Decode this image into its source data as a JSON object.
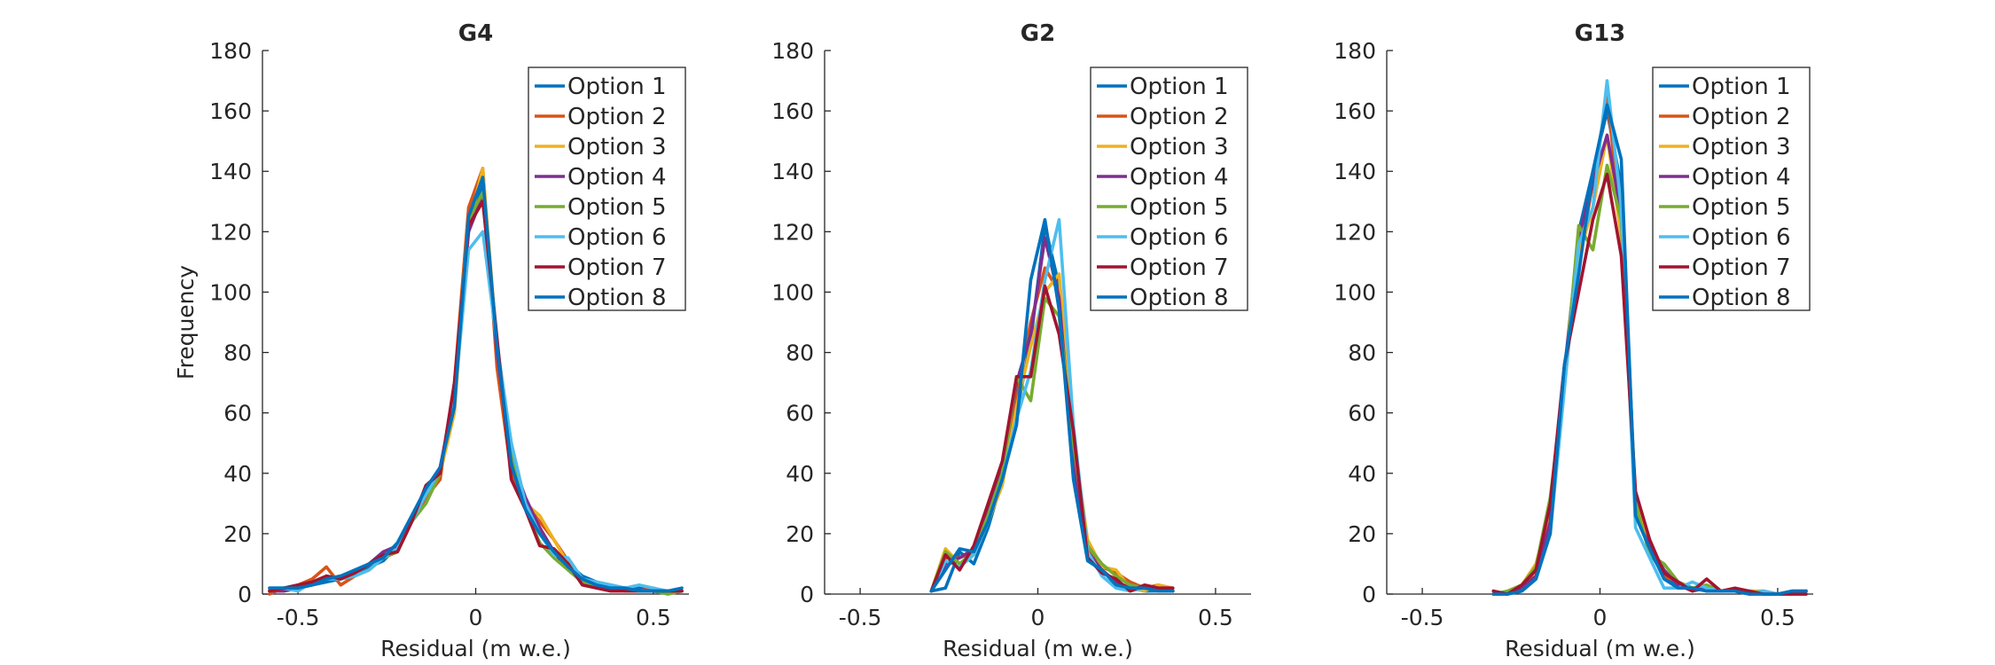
{
  "chart_data": [
    {
      "type": "line",
      "title": "G4",
      "xlabel": "Residual (m w.e.)",
      "ylabel": "Frequency",
      "xlim": [
        -0.6,
        0.6
      ],
      "ylim": [
        0,
        180
      ],
      "xticks": [
        -0.5,
        0,
        0.5
      ],
      "xtick_labels": [
        "-0.5",
        "0",
        "0.5"
      ],
      "yticks": [
        0,
        20,
        40,
        60,
        80,
        100,
        120,
        140,
        160,
        180
      ],
      "grid": false,
      "legend": "top-right",
      "x": [
        -0.58,
        -0.54,
        -0.5,
        -0.46,
        -0.42,
        -0.38,
        -0.34,
        -0.3,
        -0.26,
        -0.22,
        -0.18,
        -0.14,
        -0.1,
        -0.06,
        -0.02,
        0.02,
        0.06,
        0.1,
        0.14,
        0.18,
        0.22,
        0.26,
        0.3,
        0.34,
        0.38,
        0.42,
        0.46,
        0.5,
        0.54,
        0.58
      ],
      "series": [
        {
          "name": "Option 1",
          "values": [
            1,
            1,
            2,
            3,
            4,
            5,
            6,
            9,
            11,
            16,
            24,
            33,
            40,
            68,
            123,
            135,
            80,
            50,
            30,
            22,
            14,
            10,
            6,
            4,
            3,
            2,
            2,
            1,
            1,
            1
          ]
        },
        {
          "name": "Option 2",
          "values": [
            0,
            2,
            3,
            5,
            9,
            3,
            6,
            8,
            12,
            14,
            24,
            32,
            38,
            70,
            128,
            141,
            75,
            40,
            30,
            24,
            18,
            11,
            5,
            3,
            2,
            1,
            1,
            2,
            0,
            1
          ]
        },
        {
          "name": "Option 3",
          "values": [
            1,
            1,
            2,
            4,
            5,
            6,
            7,
            10,
            12,
            16,
            25,
            33,
            40,
            60,
            122,
            141,
            82,
            44,
            30,
            26,
            18,
            10,
            4,
            2,
            2,
            2,
            1,
            1,
            1,
            1
          ]
        },
        {
          "name": "Option 4",
          "values": [
            1,
            1,
            2,
            3,
            6,
            5,
            7,
            10,
            14,
            16,
            24,
            34,
            42,
            66,
            120,
            132,
            80,
            45,
            32,
            22,
            14,
            8,
            4,
            3,
            2,
            2,
            1,
            1,
            1,
            1
          ]
        },
        {
          "name": "Option 5",
          "values": [
            1,
            2,
            3,
            4,
            5,
            6,
            7,
            10,
            12,
            14,
            24,
            30,
            40,
            68,
            124,
            133,
            83,
            48,
            28,
            17,
            12,
            8,
            4,
            3,
            2,
            1,
            1,
            1,
            0,
            1
          ]
        },
        {
          "name": "Option 6",
          "values": [
            2,
            2,
            1,
            4,
            5,
            5,
            6,
            8,
            12,
            15,
            24,
            33,
            41,
            64,
            114,
            120,
            83,
            50,
            30,
            20,
            13,
            12,
            5,
            4,
            3,
            2,
            3,
            2,
            1,
            1
          ]
        },
        {
          "name": "Option 7",
          "values": [
            1,
            2,
            3,
            4,
            6,
            5,
            7,
            10,
            13,
            14,
            24,
            36,
            40,
            70,
            122,
            130,
            85,
            38,
            28,
            16,
            15,
            10,
            3,
            2,
            1,
            1,
            1,
            1,
            1,
            1
          ]
        },
        {
          "name": "Option 8",
          "values": [
            2,
            2,
            2,
            3,
            5,
            6,
            8,
            10,
            12,
            17,
            26,
            35,
            42,
            62,
            125,
            138,
            82,
            43,
            28,
            20,
            14,
            9,
            5,
            3,
            2,
            2,
            1,
            1,
            1,
            2
          ]
        }
      ]
    },
    {
      "type": "line",
      "title": "G2",
      "xlabel": "Residual (m w.e.)",
      "ylabel": "",
      "xlim": [
        -0.6,
        0.6
      ],
      "ylim": [
        0,
        180
      ],
      "xticks": [
        -0.5,
        0,
        0.5
      ],
      "xtick_labels": [
        "-0.5",
        "0",
        "0.5"
      ],
      "yticks": [
        0,
        20,
        40,
        60,
        80,
        100,
        120,
        140,
        160,
        180
      ],
      "grid": false,
      "legend": "top-right",
      "x": [
        -0.3,
        -0.26,
        -0.22,
        -0.18,
        -0.14,
        -0.1,
        -0.06,
        -0.02,
        0.02,
        0.06,
        0.1,
        0.14,
        0.18,
        0.22,
        0.26,
        0.3,
        0.34,
        0.38
      ],
      "series": [
        {
          "name": "Option 1",
          "values": [
            1,
            2,
            14,
            10,
            22,
            38,
            60,
            84,
            122,
            102,
            40,
            12,
            8,
            4,
            2,
            1,
            1,
            1
          ]
        },
        {
          "name": "Option 2",
          "values": [
            1,
            12,
            12,
            14,
            26,
            40,
            66,
            90,
            108,
            100,
            46,
            15,
            9,
            7,
            4,
            2,
            3,
            1
          ]
        },
        {
          "name": "Option 3",
          "values": [
            1,
            15,
            10,
            13,
            24,
            36,
            62,
            82,
            100,
            106,
            52,
            18,
            9,
            8,
            2,
            1,
            3,
            2
          ]
        },
        {
          "name": "Option 4",
          "values": [
            1,
            10,
            12,
            15,
            28,
            42,
            70,
            86,
            118,
            98,
            42,
            14,
            8,
            4,
            2,
            2,
            2,
            1
          ]
        },
        {
          "name": "Option 5",
          "values": [
            1,
            14,
            10,
            14,
            26,
            40,
            72,
            64,
            98,
            92,
            50,
            16,
            10,
            6,
            3,
            2,
            2,
            1
          ]
        },
        {
          "name": "Option 6",
          "values": [
            1,
            11,
            9,
            13,
            24,
            38,
            58,
            74,
            104,
            124,
            56,
            14,
            6,
            2,
            1,
            2,
            1,
            1
          ]
        },
        {
          "name": "Option 7",
          "values": [
            1,
            13,
            8,
            16,
            30,
            44,
            72,
            72,
            102,
            86,
            54,
            12,
            7,
            5,
            1,
            3,
            2,
            2
          ]
        },
        {
          "name": "Option 8",
          "values": [
            1,
            8,
            15,
            14,
            24,
            38,
            56,
            104,
            124,
            94,
            38,
            11,
            8,
            3,
            2,
            2,
            1,
            1
          ]
        }
      ]
    },
    {
      "type": "line",
      "title": "G13",
      "xlabel": "Residual (m w.e.)",
      "ylabel": "",
      "xlim": [
        -0.6,
        0.6
      ],
      "ylim": [
        0,
        180
      ],
      "xticks": [
        -0.5,
        0,
        0.5
      ],
      "xtick_labels": [
        "-0.5",
        "0",
        "0.5"
      ],
      "yticks": [
        0,
        20,
        40,
        60,
        80,
        100,
        120,
        140,
        160,
        180
      ],
      "grid": false,
      "legend": "top-right",
      "x": [
        -0.3,
        -0.26,
        -0.22,
        -0.18,
        -0.14,
        -0.1,
        -0.06,
        -0.02,
        0.02,
        0.06,
        0.1,
        0.14,
        0.18,
        0.22,
        0.26,
        0.3,
        0.34,
        0.38,
        0.42,
        0.46,
        0.5,
        0.54,
        0.58
      ],
      "series": [
        {
          "name": "Option 1",
          "values": [
            0,
            0,
            1,
            5,
            22,
            70,
            120,
            140,
            160,
            135,
            30,
            14,
            6,
            3,
            2,
            1,
            1,
            1,
            0,
            0,
            0,
            0,
            1
          ]
        },
        {
          "name": "Option 2",
          "values": [
            1,
            0,
            2,
            8,
            30,
            72,
            110,
            136,
            165,
            122,
            30,
            16,
            6,
            4,
            2,
            2,
            1,
            1,
            1,
            0,
            0,
            1,
            0
          ]
        },
        {
          "name": "Option 3",
          "values": [
            0,
            1,
            3,
            10,
            28,
            70,
            112,
            128,
            152,
            118,
            32,
            14,
            8,
            3,
            2,
            3,
            1,
            1,
            1,
            1,
            0,
            0,
            0
          ]
        },
        {
          "name": "Option 4",
          "values": [
            0,
            0,
            2,
            6,
            24,
            74,
            118,
            136,
            152,
            126,
            26,
            16,
            8,
            3,
            1,
            2,
            1,
            1,
            0,
            1,
            0,
            0,
            0
          ]
        },
        {
          "name": "Option 5",
          "values": [
            0,
            1,
            3,
            9,
            32,
            70,
            122,
            114,
            142,
            124,
            30,
            13,
            10,
            4,
            2,
            3,
            1,
            1,
            1,
            0,
            0,
            0,
            1
          ]
        },
        {
          "name": "Option 6",
          "values": [
            0,
            0,
            1,
            5,
            20,
            68,
            116,
            128,
            170,
            128,
            22,
            12,
            2,
            2,
            4,
            2,
            1,
            1,
            0,
            1,
            0,
            1,
            1
          ]
        },
        {
          "name": "Option 7",
          "values": [
            1,
            0,
            3,
            8,
            30,
            76,
            100,
            124,
            139,
            112,
            34,
            18,
            7,
            4,
            1,
            5,
            1,
            2,
            1,
            0,
            0,
            0,
            0
          ]
        },
        {
          "name": "Option 8",
          "values": [
            0,
            0,
            1,
            5,
            20,
            76,
            106,
            140,
            162,
            144,
            26,
            15,
            5,
            2,
            2,
            1,
            1,
            1,
            0,
            0,
            0,
            1,
            1
          ]
        }
      ]
    }
  ],
  "colors": [
    "#0072BD",
    "#D95319",
    "#EDB120",
    "#7E2F8E",
    "#77AC30",
    "#4DBEEE",
    "#A2142F",
    "#0072BD"
  ]
}
